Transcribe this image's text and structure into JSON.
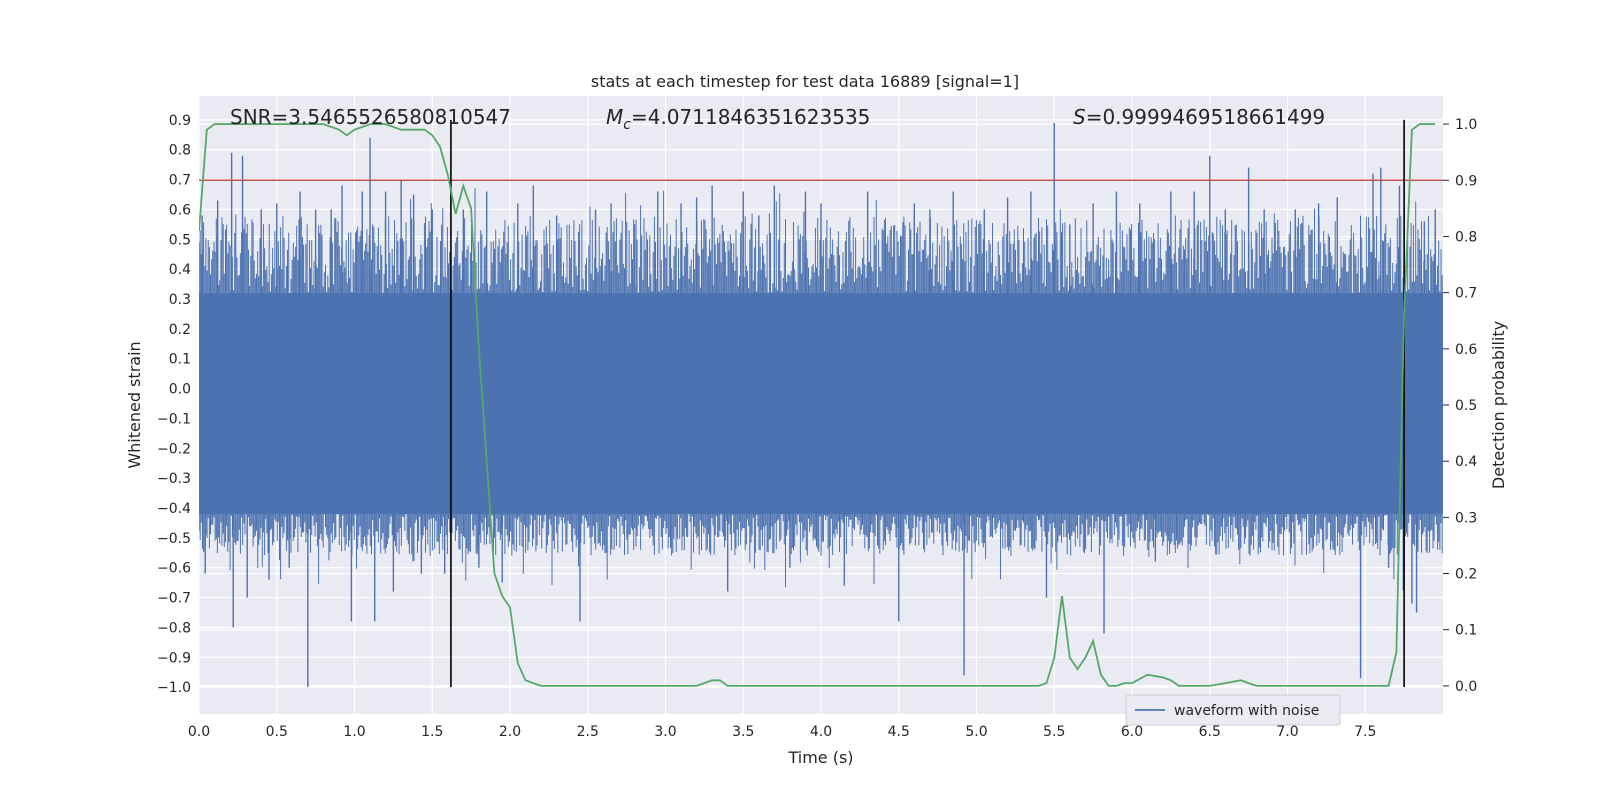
{
  "chart_data": {
    "type": "line",
    "title": "stats at each timestep for test data 16889 [signal=1]",
    "xlabel": "Time (s)",
    "ylabel_left": "Whitened strain",
    "ylabel_right": "Detection probability",
    "xlim": [
      0.0,
      8.0
    ],
    "ylim_left": [
      -1.09,
      0.98
    ],
    "ylim_right": [
      -0.05,
      1.05
    ],
    "x_ticks": [
      0.0,
      0.5,
      1.0,
      1.5,
      2.0,
      2.5,
      3.0,
      3.5,
      4.0,
      4.5,
      5.0,
      5.5,
      6.0,
      6.5,
      7.0,
      7.5
    ],
    "x_tick_labels": [
      "0.0",
      "0.5",
      "1.0",
      "1.5",
      "2.0",
      "2.5",
      "3.0",
      "3.5",
      "4.0",
      "4.5",
      "5.0",
      "5.5",
      "6.0",
      "6.5",
      "7.0",
      "7.5"
    ],
    "y_left_ticks": [
      -1.0,
      -0.9,
      -0.8,
      -0.7,
      -0.6,
      -0.5,
      -0.4,
      -0.3,
      -0.2,
      -0.1,
      0.0,
      0.1,
      0.2,
      0.3,
      0.4,
      0.5,
      0.6,
      0.7,
      0.8,
      0.9
    ],
    "y_left_tick_labels": [
      "−1.0",
      "−0.9",
      "−0.8",
      "−0.7",
      "−0.6",
      "−0.5",
      "−0.4",
      "−0.3",
      "−0.2",
      "−0.1",
      "0.0",
      "0.1",
      "0.2",
      "0.3",
      "0.4",
      "0.5",
      "0.6",
      "0.7",
      "0.8",
      "0.9"
    ],
    "y_right_ticks": [
      0.0,
      0.1,
      0.2,
      0.3,
      0.4,
      0.5,
      0.6,
      0.7,
      0.8,
      0.9,
      1.0
    ],
    "y_right_tick_labels": [
      "0.0",
      "0.1",
      "0.2",
      "0.3",
      "0.4",
      "0.5",
      "0.6",
      "0.7",
      "0.8",
      "0.9",
      "1.0"
    ],
    "annotations": {
      "snr": "SNR=3.5465526580810547",
      "mc_symbol": "M",
      "mc_sub": "c",
      "mc_value": "=4.0711846351623535",
      "s_symbol": "S",
      "s_value": "=0.9999469518661499"
    },
    "threshold": {
      "axis": "right",
      "value": 0.9,
      "color": "#c44e52"
    },
    "vertical_lines": {
      "x": [
        1.62,
        7.75
      ],
      "y_range": [
        -1.0,
        0.9
      ],
      "color": "#000000"
    },
    "series": [
      {
        "name": "waveform with noise",
        "axis": "left",
        "color": "#4c72b0",
        "noise_envelope": {
          "core_low": -0.42,
          "core_high": 0.32
        },
        "spikes": [
          [
            0.02,
            0.58
          ],
          [
            0.04,
            -0.62
          ],
          [
            0.12,
            0.63
          ],
          [
            0.16,
            -0.45
          ],
          [
            0.21,
            0.79
          ],
          [
            0.22,
            -0.8
          ],
          [
            0.28,
            0.78
          ],
          [
            0.31,
            -0.7
          ],
          [
            0.4,
            0.6
          ],
          [
            0.45,
            -0.64
          ],
          [
            0.5,
            0.62
          ],
          [
            0.58,
            -0.6
          ],
          [
            0.65,
            0.66
          ],
          [
            0.7,
            -1.0
          ],
          [
            0.75,
            0.6
          ],
          [
            0.85,
            0.6
          ],
          [
            0.92,
            0.68
          ],
          [
            0.98,
            -0.78
          ],
          [
            1.05,
            0.66
          ],
          [
            1.1,
            0.84
          ],
          [
            1.13,
            -0.78
          ],
          [
            1.2,
            0.66
          ],
          [
            1.25,
            -0.68
          ],
          [
            1.3,
            0.7
          ],
          [
            1.38,
            0.65
          ],
          [
            1.43,
            -0.62
          ],
          [
            1.5,
            0.6
          ],
          [
            1.58,
            -0.62
          ],
          [
            1.62,
            0.44
          ],
          [
            1.7,
            0.6
          ],
          [
            1.8,
            -0.6
          ],
          [
            1.85,
            0.66
          ],
          [
            1.95,
            -0.65
          ],
          [
            2.05,
            0.62
          ],
          [
            2.15,
            0.68
          ],
          [
            2.3,
            0.58
          ],
          [
            2.45,
            -0.78
          ],
          [
            2.55,
            0.6
          ],
          [
            2.65,
            0.62
          ],
          [
            2.8,
            0.55
          ],
          [
            2.95,
            0.66
          ],
          [
            3.1,
            0.62
          ],
          [
            3.2,
            0.64
          ],
          [
            3.3,
            0.68
          ],
          [
            3.4,
            -0.68
          ],
          [
            3.5,
            0.66
          ],
          [
            3.6,
            0.58
          ],
          [
            3.7,
            0.68
          ],
          [
            3.8,
            -0.6
          ],
          [
            3.9,
            0.66
          ],
          [
            4.0,
            0.62
          ],
          [
            4.15,
            -0.66
          ],
          [
            4.3,
            0.66
          ],
          [
            4.5,
            -0.78
          ],
          [
            4.6,
            0.62
          ],
          [
            4.7,
            0.6
          ],
          [
            4.85,
            0.66
          ],
          [
            4.92,
            -0.96
          ],
          [
            5.05,
            0.6
          ],
          [
            5.2,
            0.64
          ],
          [
            5.35,
            0.66
          ],
          [
            5.45,
            -0.7
          ],
          [
            5.5,
            0.89
          ],
          [
            5.6,
            0.55
          ],
          [
            5.75,
            0.62
          ],
          [
            5.82,
            -0.82
          ],
          [
            5.9,
            0.66
          ],
          [
            6.05,
            0.62
          ],
          [
            6.15,
            -0.58
          ],
          [
            6.25,
            0.66
          ],
          [
            6.4,
            0.66
          ],
          [
            6.5,
            0.78
          ],
          [
            6.6,
            0.6
          ],
          [
            6.75,
            0.74
          ],
          [
            6.85,
            0.6
          ],
          [
            7.05,
            0.6
          ],
          [
            7.2,
            0.62
          ],
          [
            7.32,
            0.64
          ],
          [
            7.47,
            -0.97
          ],
          [
            7.55,
            0.72
          ],
          [
            7.6,
            0.74
          ],
          [
            7.65,
            -0.6
          ],
          [
            7.72,
            0.68
          ],
          [
            7.8,
            -0.72
          ],
          [
            7.83,
            -0.75
          ],
          [
            7.88,
            0.56
          ],
          [
            7.95,
            0.6
          ]
        ]
      },
      {
        "name": "detection probability",
        "axis": "right",
        "color": "#55a868",
        "x": [
          0.0,
          0.05,
          0.1,
          0.2,
          0.4,
          0.6,
          0.8,
          0.9,
          0.95,
          1.0,
          1.1,
          1.2,
          1.3,
          1.45,
          1.5,
          1.55,
          1.6,
          1.65,
          1.7,
          1.75,
          1.8,
          1.85,
          1.9,
          1.95,
          2.0,
          2.05,
          2.1,
          2.2,
          2.5,
          2.8,
          3.0,
          3.2,
          3.3,
          3.35,
          3.4,
          3.5,
          3.8,
          4.0,
          4.5,
          4.75,
          5.0,
          5.2,
          5.4,
          5.45,
          5.5,
          5.55,
          5.6,
          5.65,
          5.7,
          5.75,
          5.8,
          5.85,
          5.9,
          5.95,
          6.0,
          6.1,
          6.2,
          6.25,
          6.3,
          6.35,
          6.4,
          6.5,
          6.6,
          6.7,
          6.75,
          6.8,
          6.85,
          6.9,
          7.0,
          7.2,
          7.5,
          7.6,
          7.65,
          7.7,
          7.75,
          7.8,
          7.85,
          7.9,
          7.95
        ],
        "y": [
          0.81,
          0.99,
          1.0,
          1.0,
          1.0,
          1.0,
          1.0,
          0.99,
          0.98,
          0.99,
          1.0,
          1.0,
          0.99,
          0.99,
          0.98,
          0.96,
          0.91,
          0.84,
          0.89,
          0.85,
          0.6,
          0.4,
          0.2,
          0.16,
          0.14,
          0.04,
          0.01,
          0.0,
          0.0,
          0.0,
          0.0,
          0.0,
          0.01,
          0.01,
          0.0,
          0.0,
          0.0,
          0.0,
          0.0,
          0.0,
          0.0,
          0.0,
          0.0,
          0.005,
          0.05,
          0.16,
          0.05,
          0.03,
          0.05,
          0.08,
          0.02,
          0.0,
          0.0,
          0.005,
          0.005,
          0.02,
          0.015,
          0.01,
          0.0,
          0.0,
          0.0,
          0.0,
          0.005,
          0.01,
          0.005,
          0.0,
          0.0,
          0.0,
          0.0,
          0.0,
          0.0,
          0.0,
          0.0,
          0.06,
          0.66,
          0.99,
          1.0,
          1.0,
          1.0
        ]
      }
    ],
    "legend": {
      "entries": [
        "waveform with noise"
      ],
      "location": "lower-right"
    }
  }
}
